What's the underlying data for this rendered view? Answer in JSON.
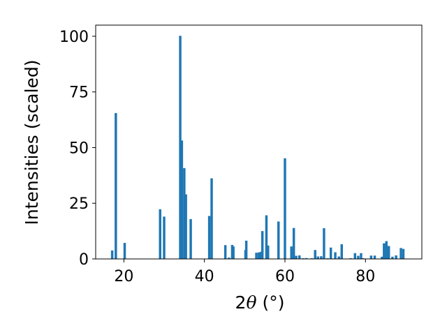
{
  "chart_data": {
    "type": "bar",
    "title": "",
    "xlabel": {
      "prefix": "2",
      "symbol": "θ",
      "suffix": " (°)"
    },
    "ylabel": "Intensities (scaled)",
    "xlim": [
      13,
      94
    ],
    "ylim": [
      0,
      105
    ],
    "xticks": [
      20,
      40,
      60,
      80
    ],
    "yticks": [
      0,
      25,
      50,
      75,
      100
    ],
    "grid": false,
    "bar_color": "#1f77b4",
    "bar_width_deg": 0.6,
    "x": [
      17.1,
      18.0,
      20.2,
      29.0,
      30.0,
      34.0,
      34.4,
      35.0,
      35.4,
      36.6,
      41.2,
      41.8,
      45.2,
      46.1,
      46.9,
      47.2,
      50.2,
      50.4,
      52.9,
      53.5,
      54.0,
      54.4,
      55.4,
      55.8,
      58.4,
      60.0,
      61.6,
      62.2,
      62.8,
      63.6,
      64.5,
      65.3,
      66.7,
      67.5,
      68.2,
      69.0,
      69.7,
      70.6,
      71.4,
      72.5,
      73.4,
      74.1,
      76.3,
      77.4,
      78.2,
      78.9,
      79.4,
      81.4,
      82.3,
      84.1,
      84.6,
      85.2,
      85.8,
      86.7,
      87.6,
      88.8,
      89.4
    ],
    "values": [
      3.8,
      65.5,
      7.2,
      22.3,
      19.0,
      100.2,
      53.2,
      40.8,
      29.0,
      17.9,
      19.3,
      36.2,
      6.2,
      0.6,
      6.3,
      5.6,
      4.0,
      8.2,
      2.8,
      2.9,
      3.2,
      12.5,
      19.6,
      6.0,
      16.8,
      45.2,
      5.6,
      13.9,
      1.4,
      1.6,
      0.3,
      0.4,
      0.3,
      4.0,
      1.1,
      1.2,
      13.8,
      0.3,
      5.1,
      3.0,
      1.1,
      6.6,
      0.3,
      2.6,
      1.4,
      2.6,
      0.3,
      1.5,
      1.5,
      1.0,
      7.0,
      8.0,
      5.8,
      1.0,
      1.6,
      4.9,
      4.5
    ]
  }
}
